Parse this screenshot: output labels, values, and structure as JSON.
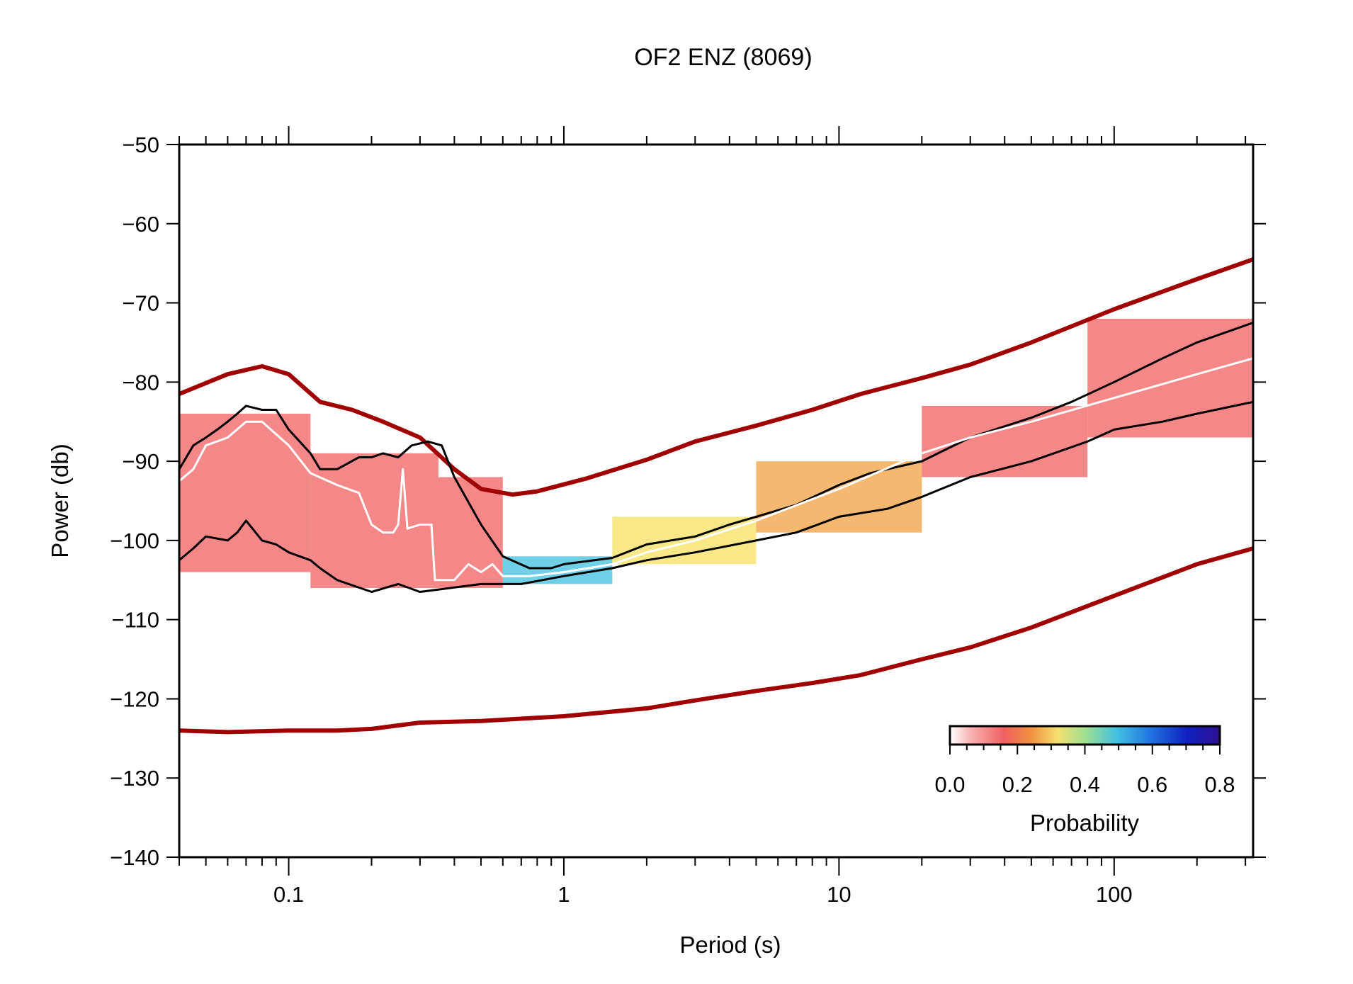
{
  "chart_data": {
    "type": "heatmap",
    "title": "OF2 ENZ (8069)",
    "xlabel": "Period (s)",
    "ylabel": "Power (db)",
    "xscale": "log",
    "xlim": [
      0.04,
      320
    ],
    "ylim": [
      -140,
      -50
    ],
    "x_ticks": [
      0.1,
      1,
      10,
      100
    ],
    "x_tick_labels": [
      "0.1",
      "1",
      "10",
      "100"
    ],
    "y_ticks": [
      -50,
      -60,
      -70,
      -80,
      -90,
      -100,
      -110,
      -120,
      -130,
      -140
    ],
    "y_tick_labels": [
      "−50",
      "−60",
      "−70",
      "−80",
      "−90",
      "−100",
      "−110",
      "−120",
      "−130",
      "−140"
    ],
    "colorbar": {
      "label": "Probability",
      "range": [
        0,
        0.8
      ],
      "ticks": [
        0.0,
        0.2,
        0.4,
        0.6,
        0.8
      ],
      "tick_labels": [
        "0.0",
        "0.2",
        "0.4",
        "0.6",
        "0.8"
      ],
      "placement": "bottom-right",
      "colors": [
        "#ffffff",
        "#f8b8b8",
        "#f06060",
        "#f0a040",
        "#f5e060",
        "#a0e080",
        "#40c0e0",
        "#2060e0",
        "#1010c0",
        "#301090"
      ]
    },
    "series": [
      {
        "role": "new-high-noise-model",
        "color": "#a00000",
        "x": [
          0.04,
          0.06,
          0.08,
          0.1,
          0.13,
          0.17,
          0.22,
          0.3,
          0.4,
          0.5,
          0.65,
          0.8,
          1.2,
          2,
          3,
          5,
          8,
          12,
          20,
          30,
          50,
          100,
          200,
          320
        ],
        "y": [
          -81.5,
          -79,
          -78,
          -79,
          -82.5,
          -83.5,
          -85,
          -87,
          -91,
          -93.5,
          -94.2,
          -93.8,
          -92.2,
          -89.8,
          -87.5,
          -85.5,
          -83.5,
          -81.5,
          -79.5,
          -77.8,
          -75,
          -70.8,
          -67,
          -64.5
        ]
      },
      {
        "role": "new-low-noise-model",
        "color": "#a00000",
        "x": [
          0.04,
          0.06,
          0.1,
          0.15,
          0.2,
          0.3,
          0.5,
          1,
          2,
          3,
          5,
          8,
          12,
          20,
          30,
          50,
          100,
          200,
          320
        ],
        "y": [
          -124,
          -124.2,
          -124,
          -124,
          -123.8,
          -123,
          -122.8,
          -122.2,
          -121.2,
          -120.2,
          -119,
          -118,
          -117,
          -115,
          -113.5,
          -111,
          -107,
          -103,
          -101
        ]
      },
      {
        "role": "upper-percentile",
        "color": "#000000",
        "x": [
          0.04,
          0.045,
          0.05,
          0.055,
          0.06,
          0.065,
          0.07,
          0.08,
          0.09,
          0.1,
          0.12,
          0.13,
          0.15,
          0.18,
          0.2,
          0.22,
          0.25,
          0.28,
          0.32,
          0.36,
          0.4,
          0.5,
          0.6,
          0.75,
          0.9,
          1,
          1.5,
          2,
          3,
          4,
          5,
          7,
          10,
          13,
          20,
          30,
          50,
          70,
          100,
          150,
          200,
          320
        ],
        "y": [
          -91,
          -88,
          -87,
          -86,
          -85,
          -84,
          -83,
          -83.5,
          -83.5,
          -86,
          -89,
          -91,
          -91,
          -89.5,
          -89.5,
          -89,
          -89.5,
          -88,
          -87.5,
          -88,
          -92,
          -98,
          -102,
          -103.5,
          -103.5,
          -103,
          -102.2,
          -100.5,
          -99.5,
          -98,
          -97,
          -95.5,
          -93,
          -91.5,
          -90,
          -87,
          -84.5,
          -82.5,
          -80,
          -77,
          -75,
          -72.5
        ]
      },
      {
        "role": "lower-percentile",
        "color": "#000000",
        "x": [
          0.04,
          0.045,
          0.05,
          0.06,
          0.065,
          0.07,
          0.08,
          0.09,
          0.1,
          0.12,
          0.13,
          0.15,
          0.2,
          0.25,
          0.3,
          0.5,
          0.7,
          1,
          1.5,
          2,
          3,
          5,
          7,
          10,
          15,
          20,
          30,
          50,
          80,
          100,
          150,
          200,
          320
        ],
        "y": [
          -102.5,
          -101,
          -99.5,
          -100,
          -99,
          -97.5,
          -100,
          -100.5,
          -101.5,
          -102.5,
          -103.5,
          -105,
          -106.5,
          -105.5,
          -106.5,
          -105.5,
          -105.5,
          -104.5,
          -103.5,
          -102.5,
          -101.5,
          -100,
          -99,
          -97,
          -96,
          -94.5,
          -92,
          -90,
          -87.5,
          -86,
          -85,
          -84,
          -82.5
        ]
      },
      {
        "role": "mode",
        "color": "#ffffff",
        "x": [
          0.04,
          0.045,
          0.05,
          0.06,
          0.07,
          0.08,
          0.1,
          0.12,
          0.15,
          0.18,
          0.2,
          0.22,
          0.24,
          0.25,
          0.26,
          0.27,
          0.3,
          0.33,
          0.34,
          0.4,
          0.45,
          0.5,
          0.55,
          0.6,
          0.75,
          1,
          1.5,
          2,
          3,
          5,
          10,
          20,
          30,
          50,
          100,
          200,
          320
        ],
        "y": [
          -92.5,
          -91,
          -88,
          -87,
          -85,
          -85,
          -88,
          -91.5,
          -93,
          -94,
          -98,
          -99,
          -99,
          -98,
          -91,
          -98.5,
          -98,
          -98,
          -105,
          -105,
          -103,
          -104,
          -103,
          -104.5,
          -104.5,
          -104,
          -103,
          -101.5,
          -100,
          -97.5,
          -93.5,
          -89,
          -87,
          -85,
          -82,
          -79,
          -77
        ]
      }
    ],
    "density": [
      {
        "x": [
          0.04,
          0.12
        ],
        "y": [
          -104,
          -84
        ],
        "p": 0.06
      },
      {
        "x": [
          0.12,
          0.35
        ],
        "y": [
          -106,
          -89
        ],
        "p": 0.05
      },
      {
        "x": [
          0.35,
          0.6
        ],
        "y": [
          -106,
          -92
        ],
        "p": 0.06
      },
      {
        "x": [
          0.6,
          1.5
        ],
        "y": [
          -105.5,
          -102
        ],
        "p": 0.45
      },
      {
        "x": [
          1.5,
          5
        ],
        "y": [
          -103,
          -97
        ],
        "p": 0.3
      },
      {
        "x": [
          5,
          20
        ],
        "y": [
          -99,
          -90
        ],
        "p": 0.2
      },
      {
        "x": [
          20,
          80
        ],
        "y": [
          -92,
          -83
        ],
        "p": 0.12
      },
      {
        "x": [
          80,
          320
        ],
        "y": [
          -87,
          -72
        ],
        "p": 0.07
      }
    ]
  }
}
